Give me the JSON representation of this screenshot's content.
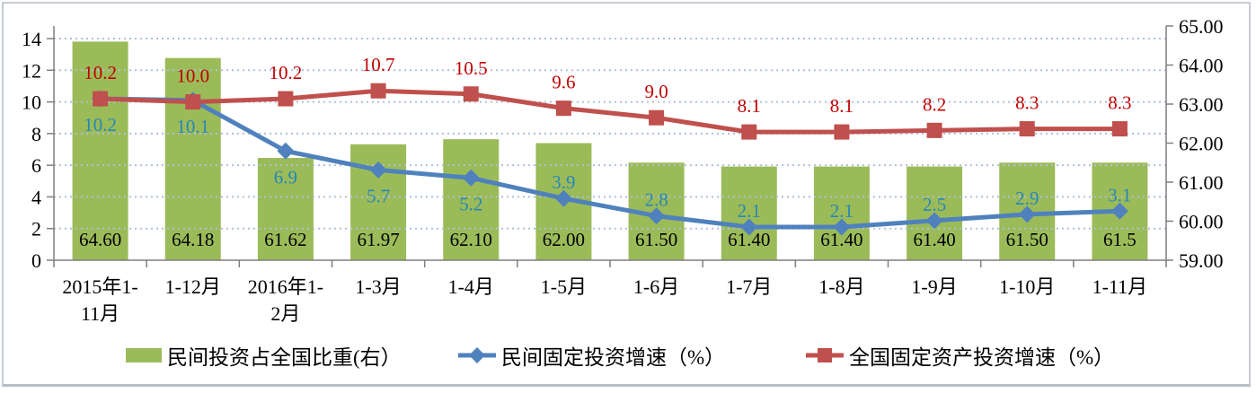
{
  "chart_data": {
    "type": "combo",
    "title": "",
    "categories": [
      "2015年1-11月",
      "1-12月",
      "2016年1-2月",
      "1-3月",
      "1-4月",
      "1-5月",
      "1-6月",
      "1-7月",
      "1-8月",
      "1-9月",
      "1-10月",
      "1-11月"
    ],
    "category_label_lines": [
      [
        "2015年1-",
        "11月"
      ],
      [
        "1-12月"
      ],
      [
        "2016年1-",
        "2月"
      ],
      [
        "1-3月"
      ],
      [
        "1-4月"
      ],
      [
        "1-5月"
      ],
      [
        "1-6月"
      ],
      [
        "1-7月"
      ],
      [
        "1-8月"
      ],
      [
        "1-9月"
      ],
      [
        "1-10月"
      ],
      [
        "1-11月"
      ]
    ],
    "series": [
      {
        "name": "民间投资占全国比重(右）",
        "type": "bar",
        "axis": "right",
        "color": "#9bbb59",
        "values": [
          64.6,
          64.18,
          61.62,
          61.97,
          62.1,
          62.0,
          61.5,
          61.4,
          61.4,
          61.4,
          61.5,
          61.5
        ],
        "data_labels": [
          "64.60",
          "64.18",
          "61.62",
          "61.97",
          "62.10",
          "62.00",
          "61.50",
          "61.40",
          "61.40",
          "61.40",
          "61.50",
          "61.5"
        ],
        "label_color": "#000000"
      },
      {
        "name": "民间固定投资增速（%）",
        "type": "line",
        "marker": "diamond",
        "axis": "left",
        "color": "#4f81bd",
        "values": [
          10.2,
          10.1,
          6.9,
          5.7,
          5.2,
          3.9,
          2.8,
          2.1,
          2.1,
          2.5,
          2.9,
          3.1
        ],
        "data_labels": [
          "10.2",
          "10.1",
          "6.9",
          "5.7",
          "5.2",
          "3.9",
          "2.8",
          "2.1",
          "2.1",
          "2.5",
          "2.9",
          "3.1"
        ],
        "label_color": "#2787b8",
        "labels_below_first_n": 5
      },
      {
        "name": "全国固定资产投资增速（%）",
        "type": "line",
        "marker": "square",
        "axis": "left",
        "color": "#c0504d",
        "values": [
          10.2,
          10.0,
          10.2,
          10.7,
          10.5,
          9.6,
          9.0,
          8.1,
          8.1,
          8.2,
          8.3,
          8.3
        ],
        "data_labels": [
          "10.2",
          "10.0",
          "10.2",
          "10.7",
          "10.5",
          "9.6",
          "9.0",
          "8.1",
          "8.1",
          "8.2",
          "8.3",
          "8.3"
        ],
        "label_color": "#c00000"
      }
    ],
    "left_axis": {
      "min": 0,
      "max": 14,
      "tick_values": [
        14,
        12,
        10,
        8,
        6,
        4,
        2,
        0
      ],
      "tick_labels": [
        "14",
        "12",
        "10",
        "8",
        "6",
        "4",
        "2",
        "0"
      ]
    },
    "right_axis": {
      "min": 59,
      "max": 65,
      "tick_values": [
        65,
        64,
        63,
        62,
        61,
        60,
        59
      ],
      "tick_labels": [
        "65.00",
        "64.00",
        "63.00",
        "62.00",
        "61.00",
        "60.00",
        "59.00"
      ]
    },
    "gridlines": {
      "style": "dotted",
      "color": "#aec0da",
      "at_left_values": [
        2,
        4,
        6,
        8,
        10,
        12,
        14
      ]
    },
    "legend_position": "bottom"
  },
  "colors": {
    "axis_line": "#7f7f7f",
    "text": "#000000",
    "frame_border": "#c6cbd2",
    "background": "#ffffff"
  }
}
